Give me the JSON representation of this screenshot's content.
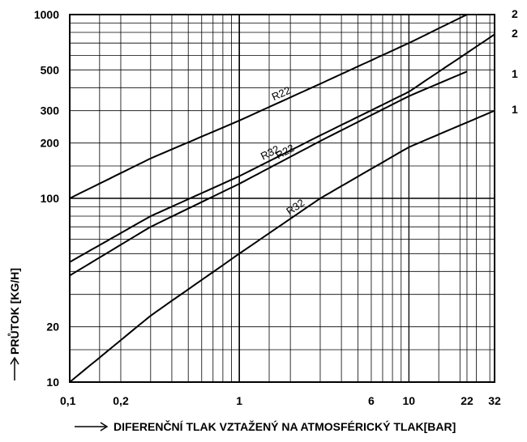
{
  "chart_data": {
    "type": "line",
    "title": "",
    "xlabel": "DIFERENČNÍ TLAK VZTAŽENÝ NA ATMOSFÉRICKÝ TLAK[BAR]",
    "ylabel": "PRŮTOK [KG/H]",
    "xscale": "log",
    "yscale": "log",
    "xlim": [
      0.1,
      32
    ],
    "ylim": [
      10,
      1000
    ],
    "x_ticks": [
      {
        "value": 0.1,
        "label": "0,1"
      },
      {
        "value": 0.2,
        "label": "0,2"
      },
      {
        "value": 1,
        "label": "1"
      },
      {
        "value": 6,
        "label": "6"
      },
      {
        "value": 10,
        "label": "10"
      },
      {
        "value": 22,
        "label": "22"
      },
      {
        "value": 32,
        "label": "32"
      }
    ],
    "y_ticks": [
      {
        "value": 10,
        "label": "10"
      },
      {
        "value": 20,
        "label": "20"
      },
      {
        "value": 100,
        "label": "100"
      },
      {
        "value": 200,
        "label": "200"
      },
      {
        "value": 300,
        "label": "300"
      },
      {
        "value": 500,
        "label": "500"
      },
      {
        "value": 1000,
        "label": "1000"
      }
    ],
    "grid": true,
    "series": [
      {
        "name": "R22",
        "label_at": 1.8,
        "x": [
          0.1,
          0.3,
          1,
          3,
          10,
          22
        ],
        "y": [
          100,
          165,
          265,
          420,
          700,
          1000
        ]
      },
      {
        "name": "R32",
        "label_at": 1.55,
        "x": [
          0.1,
          0.3,
          1,
          3,
          10,
          32
        ],
        "y": [
          45,
          80,
          132,
          220,
          380,
          780
        ]
      },
      {
        "name": "R22",
        "label_at": 1.9,
        "x": [
          0.1,
          0.3,
          1,
          3,
          10,
          22
        ],
        "y": [
          38,
          70,
          120,
          205,
          360,
          490
        ]
      },
      {
        "name": "R32",
        "label_at": 2.2,
        "x": [
          0.1,
          0.3,
          1,
          3,
          10,
          32
        ],
        "y": [
          10,
          23,
          50,
          100,
          190,
          300
        ]
      }
    ],
    "right_labels": [
      "2",
      "2",
      "1",
      "1"
    ]
  }
}
